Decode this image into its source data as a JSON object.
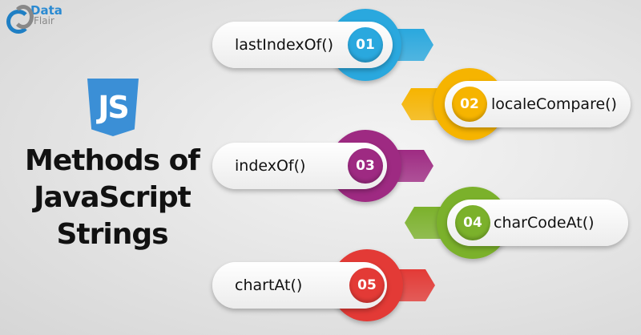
{
  "logo": {
    "line1": "Data",
    "line2": "Flair"
  },
  "badge": {
    "text": "JS",
    "color": "#3b8fd6"
  },
  "title": [
    "Methods of",
    "JavaScript",
    "Strings"
  ],
  "items": [
    {
      "number": "01",
      "label": "lastIndexOf()",
      "color": "#2aa8de"
    },
    {
      "number": "02",
      "label": "localeCompare()",
      "color": "#f6b400"
    },
    {
      "number": "03",
      "label": "indexOf()",
      "color": "#9e2a82"
    },
    {
      "number": "04",
      "label": "charCodeAt()",
      "color": "#7bb12b"
    },
    {
      "number": "05",
      "label": "chartAt()",
      "color": "#e33a36"
    }
  ]
}
